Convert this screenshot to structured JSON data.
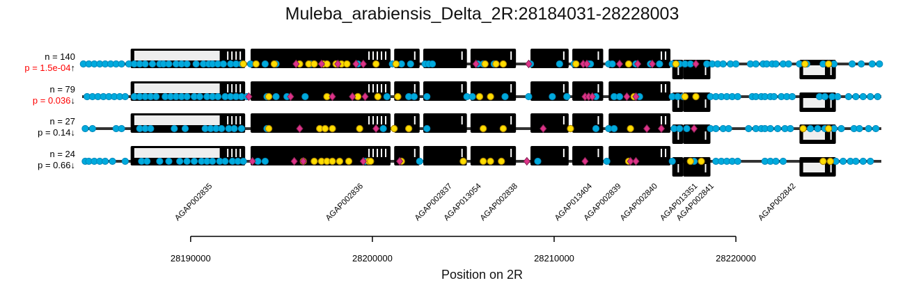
{
  "chart_data": {
    "type": "scatter",
    "title": "Muleba_arabiensis_Delta_2R:28184031-28228003",
    "xlabel": "Position on 2R",
    "xlim": [
      28184031,
      28228003
    ],
    "xticks": [
      28190000,
      28200000,
      28210000,
      28220000
    ],
    "xtick_labels": [
      "28190000",
      "28200000",
      "28210000",
      "28220000"
    ],
    "colors": {
      "neutral": "#00aadd",
      "synonymous": "#ffdd00",
      "nonsynonymous": "#dd3388",
      "gene": "#000000",
      "utr": "#eeeeee",
      "backbone": "#333333",
      "significant_text": "#ff0000"
    },
    "genes": [
      {
        "name": "AGAP002835",
        "start": 28186700,
        "end": 28193000,
        "strand": "+",
        "exons": [
          [
            28186700,
            28193000
          ]
        ],
        "utr": [
          [
            28186900,
            28191600
          ]
        ]
      },
      {
        "name": "AGAP002836",
        "start": 28193300,
        "end": 28201000,
        "strand": "+",
        "exons": [
          [
            28193300,
            28201000
          ]
        ],
        "utr": []
      },
      {
        "name": "AGAP002837",
        "start": 28201200,
        "end": 28202600,
        "strand": "+",
        "exons": [
          [
            28201200,
            28202600
          ]
        ],
        "utr": []
      },
      {
        "name": "AGAP013054",
        "start": 28202800,
        "end": 28205200,
        "strand": "+",
        "exons": [
          [
            28202800,
            28205200
          ]
        ],
        "utr": []
      },
      {
        "name": "AGAP002838",
        "start": 28205400,
        "end": 28207900,
        "strand": "+",
        "exons": [
          [
            28205400,
            28207900
          ]
        ],
        "utr": []
      },
      {
        "name": "AGAP013404",
        "start": 28208700,
        "end": 28210800,
        "strand": "+",
        "exons": [
          [
            28208700,
            28210800
          ]
        ],
        "utr": []
      },
      {
        "name": "AGAP002839",
        "start": 28211000,
        "end": 28212700,
        "strand": "+",
        "exons": [
          [
            28211000,
            28212700
          ]
        ],
        "utr": []
      },
      {
        "name": "AGAP002840",
        "start": 28213000,
        "end": 28216400,
        "strand": "+",
        "exons": [
          [
            28213000,
            28216400
          ]
        ],
        "utr": []
      },
      {
        "name": "AGAP013351",
        "start": 28216500,
        "end": 28217100,
        "strand": "-",
        "exons": [
          [
            28216500,
            28217100
          ]
        ],
        "utr": []
      },
      {
        "name": "AGAP002841",
        "start": 28217100,
        "end": 28218600,
        "strand": "-",
        "exons": [
          [
            28217100,
            28218600
          ]
        ],
        "utr": []
      },
      {
        "name": "AGAP002842",
        "start": 28223500,
        "end": 28225500,
        "strand": "-",
        "exons": [
          [
            28223500,
            28225500
          ]
        ],
        "utr": [
          [
            28223700,
            28224900
          ]
        ]
      }
    ],
    "gene_label_positions": [
      28189300,
      28197600,
      28202500,
      28204100,
      28206100,
      28210200,
      28211800,
      28213800,
      28216000,
      28216900,
      28221400
    ],
    "series": [
      {
        "n_label": "n = 140",
        "p_label": "p = 1.5e-04",
        "direction": "↑",
        "significant": true,
        "neutral": [
          28184100,
          28184400,
          28184700,
          28185000,
          28185300,
          28185600,
          28185900,
          28186200,
          28186600,
          28186900,
          28187200,
          28187500,
          28187900,
          28188300,
          28188500,
          28188800,
          28189200,
          28189500,
          28189800,
          28190300,
          28190700,
          28191000,
          28191200,
          28191500,
          28191800,
          28192200,
          28192500,
          28192800,
          28193300,
          28194100,
          28194700,
          28196600,
          28199200,
          28201100,
          28201600,
          28202100,
          28202900,
          28203100,
          28203300,
          28205800,
          28206100,
          28206700,
          28208700,
          28210300,
          28211100,
          28211900,
          28212000,
          28213000,
          28213200,
          28214500,
          28215300,
          28215800,
          28216500,
          28216900,
          28217200,
          28217500,
          28218400,
          28218700,
          28219000,
          28219300,
          28219700,
          28220000,
          28220800,
          28221100,
          28221500,
          28221700,
          28222000,
          28222200,
          28222600,
          28222900,
          28223500,
          28223900,
          28224800,
          28225400,
          28226400,
          28226900,
          28227500,
          28227900
        ],
        "synonymous": [
          28192900,
          28193600,
          28194600,
          28196000,
          28196500,
          28196800,
          28197300,
          28197500,
          28198000,
          28198300,
          28198600,
          28200200,
          28201300,
          28206200,
          28206800,
          28207200,
          28211200,
          28214100,
          28216700,
          28223800,
          28225100
        ],
        "nonsynonymous": [
          28195800,
          28197200,
          28198100,
          28199100,
          28199500,
          28205700,
          28208600,
          28211600,
          28211800,
          28213600,
          28214600,
          28215400,
          28217800
        ]
      },
      {
        "n_label": "n = 79",
        "p_label": "p = 0.036",
        "direction": "↓",
        "significant": true,
        "neutral": [
          28184300,
          28184600,
          28184900,
          28185200,
          28185500,
          28185800,
          28186100,
          28186400,
          28186900,
          28187200,
          28187500,
          28187800,
          28188100,
          28188600,
          28188900,
          28189200,
          28189500,
          28189800,
          28190200,
          28190500,
          28190900,
          28191200,
          28191500,
          28191900,
          28192200,
          28192500,
          28192800,
          28193100,
          28194200,
          28194700,
          28195300,
          28196300,
          28200800,
          28202000,
          28202300,
          28203000,
          28205200,
          28205500,
          28207300,
          28208600,
          28209900,
          28210700,
          28212300,
          28213300,
          28213600,
          28214700,
          28216500,
          28216800,
          28217100,
          28218600,
          28218900,
          28219200,
          28219500,
          28219800,
          28220100,
          28220900,
          28221100,
          28221400,
          28221600,
          28221900,
          28222100,
          28222500,
          28222800,
          28223100,
          28224600,
          28224900,
          28225300,
          28225600,
          28226200,
          28226600,
          28227000,
          28227400,
          28227800
        ],
        "synonymous": [
          28194300,
          28197500,
          28199200,
          28200300,
          28201400,
          28205900,
          28206500,
          28214400,
          28217200,
          28217800
        ],
        "nonsynonymous": [
          28193200,
          28195500,
          28197800,
          28198900,
          28199600,
          28211700,
          28211900,
          28212100,
          28214000,
          28214500
        ]
      },
      {
        "n_label": "n = 27",
        "p_label": "p = 0.14",
        "direction": "↓",
        "significant": false,
        "neutral": [
          28184200,
          28184600,
          28185900,
          28186200,
          28187200,
          28187500,
          28187800,
          28189100,
          28189700,
          28190800,
          28191100,
          28191400,
          28191700,
          28192100,
          28192400,
          28192800,
          28194200,
          28200600,
          28203000,
          28212300,
          28213000,
          28213300,
          28216600,
          28216900,
          28217300,
          28218600,
          28218900,
          28219300,
          28219600,
          28220700,
          28221100,
          28221400,
          28221600,
          28221900,
          28222300,
          28222700,
          28223000,
          28224100,
          28224500,
          28224900,
          28225400,
          28225800,
          28226500,
          28226800,
          28227300,
          28227700
        ],
        "synonymous": [
          28194300,
          28197100,
          28197400,
          28197800,
          28199300,
          28201200,
          28202000,
          28206100,
          28207200,
          28210900,
          28214200,
          28223700,
          28225100
        ],
        "nonsynonymous": [
          28196000,
          28200200,
          28209400,
          28215100,
          28215900,
          28217700
        ]
      },
      {
        "n_label": "n = 24",
        "p_label": "p = 0.66",
        "direction": "↓",
        "significant": false,
        "neutral": [
          28184200,
          28184400,
          28184700,
          28185000,
          28185300,
          28185700,
          28186400,
          28187300,
          28187600,
          28188300,
          28188800,
          28189400,
          28189800,
          28190200,
          28190600,
          28190900,
          28191200,
          28191600,
          28191900,
          28192300,
          28192600,
          28192900,
          28193700,
          28194100,
          28199600,
          28202600,
          28205000,
          28209100,
          28212900,
          28216500,
          28217700,
          28218900,
          28219200,
          28219500,
          28219800,
          28220100,
          28221600,
          28221900,
          28222200,
          28222600,
          28225500,
          28225900,
          28226300,
          28226600,
          28227000,
          28227400
        ],
        "synonymous": [
          28196200,
          28196800,
          28197200,
          28197500,
          28197800,
          28198200,
          28198700,
          28199800,
          28199900,
          28201600,
          28205000,
          28206100,
          28206500,
          28207100,
          28214100,
          28217500,
          28218100,
          28224800,
          28225200
        ],
        "nonsynonymous": [
          28193400,
          28195700,
          28196200,
          28199500,
          28201500,
          28208500,
          28211700,
          28214200,
          28214500
        ]
      }
    ]
  }
}
